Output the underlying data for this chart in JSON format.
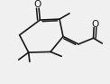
{
  "bg_color": "#f0f0f0",
  "line_color": "#1a1a1a",
  "line_width": 1.2,
  "figsize": [
    1.22,
    0.93
  ],
  "dpi": 100,
  "label_fontsize": 7.5
}
